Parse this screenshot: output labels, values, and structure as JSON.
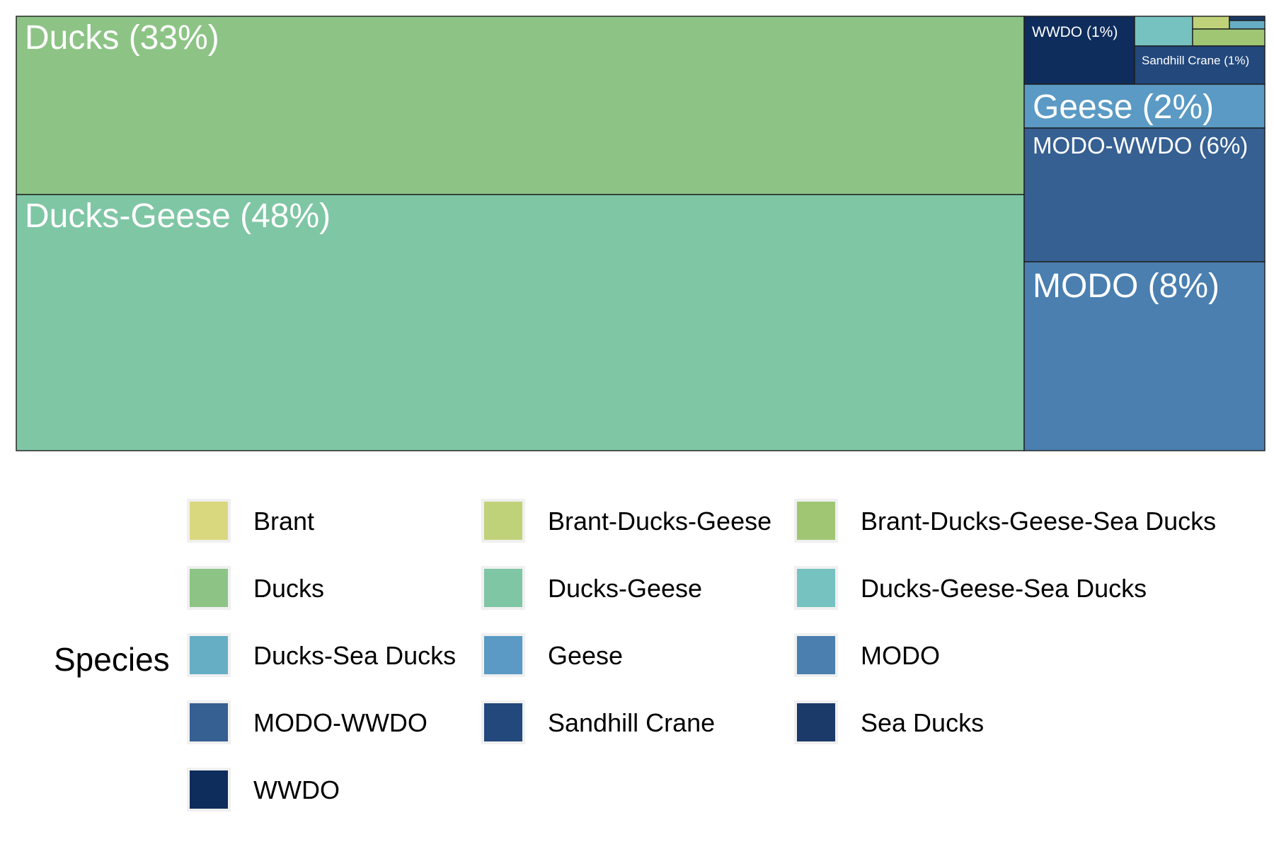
{
  "chart_data": {
    "type": "treemap",
    "legend_title": "Species",
    "legend_position": "bottom",
    "tiles": [
      {
        "name": "Ducks-Geese",
        "label": "Ducks-Geese (48%)",
        "share": 48,
        "color": "#7fc6a5"
      },
      {
        "name": "Ducks",
        "label": "Ducks (33%)",
        "share": 33,
        "color": "#8dc486"
      },
      {
        "name": "MODO",
        "label": "MODO (8%)",
        "share": 8,
        "color": "#4a7fb0"
      },
      {
        "name": "MODO-WWDO",
        "label": "MODO-WWDO (6%)",
        "share": 6,
        "color": "#365f92"
      },
      {
        "name": "Geese",
        "label": "Geese (2%)",
        "share": 2,
        "color": "#5a9ac4"
      },
      {
        "name": "WWDO",
        "label": "WWDO (1%)",
        "share": 1,
        "color": "#0e2d5c"
      },
      {
        "name": "Sandhill Crane",
        "label": "Sandhill Crane (1%)",
        "share": 1,
        "color": "#22487c"
      },
      {
        "name": "Ducks-Geese-Sea Ducks",
        "label": "",
        "share": 0.4,
        "color": "#76c2c0"
      },
      {
        "name": "Brant-Ducks-Geese",
        "label": "",
        "share": 0.1,
        "color": "#bfd27a"
      },
      {
        "name": "Brant-Ducks-Geese-Sea Ducks",
        "label": "",
        "share": 0.15,
        "color": "#a0c673"
      },
      {
        "name": "Ducks-Sea Ducks",
        "label": "",
        "share": 0.07,
        "color": "#66aec4"
      },
      {
        "name": "Sea Ducks",
        "label": "",
        "share": 0.04,
        "color": "#1b3a69"
      }
    ],
    "legend": [
      {
        "label": "Brant",
        "color": "#d9d87e"
      },
      {
        "label": "Brant-Ducks-Geese",
        "color": "#bfd27a"
      },
      {
        "label": "Brant-Ducks-Geese-Sea Ducks",
        "color": "#a0c673"
      },
      {
        "label": "Ducks",
        "color": "#8dc486"
      },
      {
        "label": "Ducks-Geese",
        "color": "#7fc6a5"
      },
      {
        "label": "Ducks-Geese-Sea Ducks",
        "color": "#76c2c0"
      },
      {
        "label": "Ducks-Sea Ducks",
        "color": "#66aec4"
      },
      {
        "label": "Geese",
        "color": "#5a9ac4"
      },
      {
        "label": "MODO",
        "color": "#4a7fb0"
      },
      {
        "label": "MODO-WWDO",
        "color": "#365f92"
      },
      {
        "label": "Sandhill Crane",
        "color": "#22487c"
      },
      {
        "label": "Sea Ducks",
        "color": "#1b3a69"
      },
      {
        "label": "WWDO",
        "color": "#0e2d5c"
      }
    ]
  }
}
